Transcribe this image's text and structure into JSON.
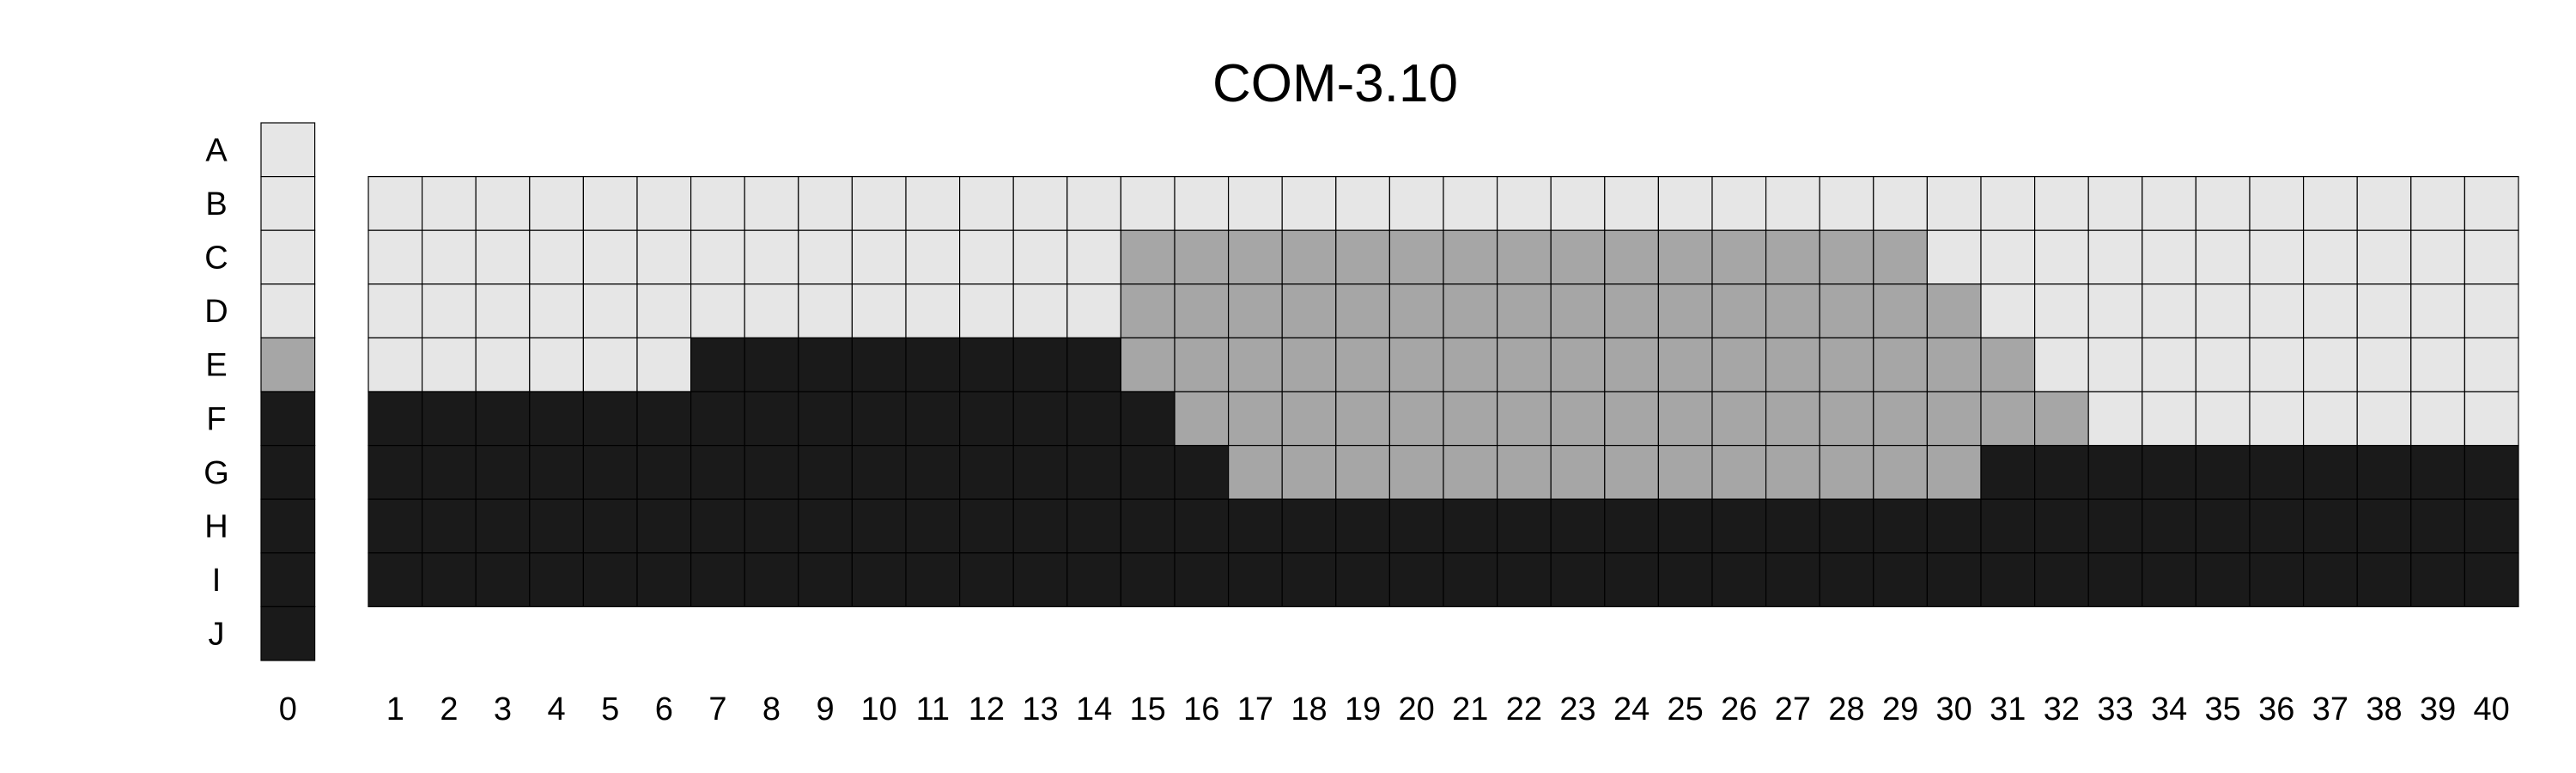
{
  "chart_data": {
    "type": "heatmap",
    "title": "COM-3.10",
    "rows": [
      "A",
      "B",
      "C",
      "D",
      "E",
      "F",
      "G",
      "H",
      "I",
      "J"
    ],
    "column_0": {
      "label": "0",
      "levels": [
        "light",
        "light",
        "light",
        "light",
        "medium",
        "dark",
        "dark",
        "dark",
        "dark",
        "dark"
      ]
    },
    "columns": [
      "1",
      "2",
      "3",
      "4",
      "5",
      "6",
      "7",
      "8",
      "9",
      "10",
      "11",
      "12",
      "13",
      "14",
      "15",
      "16",
      "17",
      "18",
      "19",
      "20",
      "21",
      "22",
      "23",
      "24",
      "25",
      "26",
      "27",
      "28",
      "29",
      "30",
      "31",
      "32",
      "33",
      "34",
      "35",
      "36",
      "37",
      "38",
      "39",
      "40"
    ],
    "grid_rows": [
      "B",
      "C",
      "D",
      "E",
      "F",
      "G",
      "H",
      "I"
    ],
    "grid": [
      "LLLLLLLLLLLLLLLLLLLLLLLLLLLLLLLLLLLLLLLL",
      "LLLLLLLLLLLLLLMMMMMMMMMMMMMMMLLLLLLLLLLL",
      "LLLLLLLLLLLLLLMMMMMMMMMMMMMMMMLLLLLLLLLL",
      "LLLLLLDDDDDDDDMMMMMMMMMMMMMMMMMLLLLLLLLL",
      "DDDDDDDDDDDDDDDMMMMMMMMMMMMMMMMMLLLLLLLL",
      "DDDDDDDDDDDDDDDDMMMMMMMMMMMMMMDDDDDDDDDD",
      "DDDDDDDDDDDDDDDDDDDDDDDDDDDDDDDDDDDDDDDD",
      "DDDDDDDDDDDDDDDDDDDDDDDDDDDDDDDDDDDDDDDD"
    ],
    "legend_codes": {
      "L": "light",
      "M": "medium",
      "D": "dark"
    },
    "colors": {
      "light": "#e6e6e6",
      "medium": "#a6a6a6",
      "dark": "#1a1a1a",
      "border": "#000000"
    }
  }
}
